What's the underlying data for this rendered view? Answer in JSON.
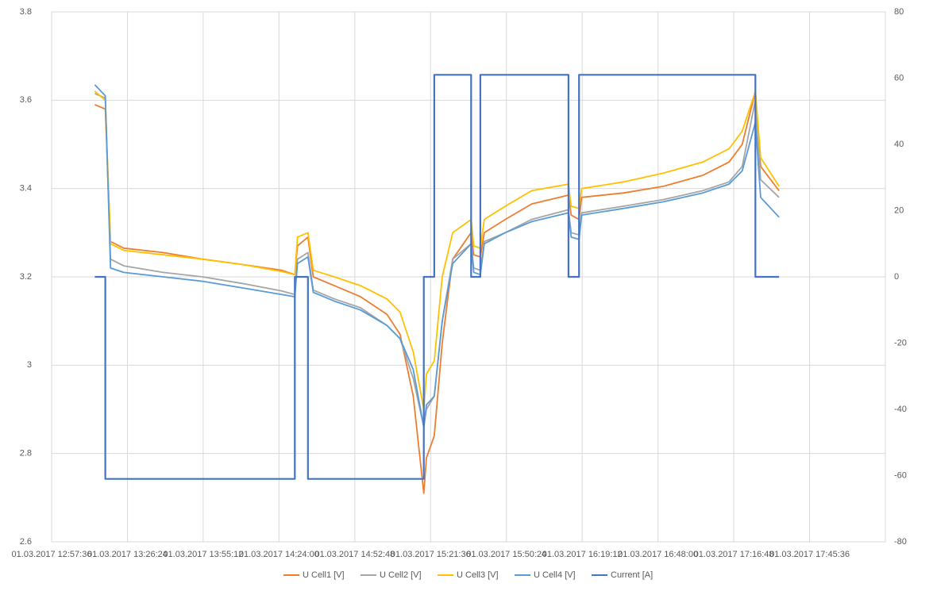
{
  "chart_data": {
    "type": "line",
    "x": [
      "01.03.2017 13:14:00",
      "01.03.2017 13:18:00",
      "01.03.2017 13:18:00",
      "01.03.2017 13:20:00",
      "01.03.2017 13:25:00",
      "01.03.2017 13:40:00",
      "01.03.2017 13:55:00",
      "01.03.2017 14:10:00",
      "01.03.2017 14:25:00",
      "01.03.2017 14:30:00",
      "01.03.2017 14:30:00",
      "01.03.2017 14:31:00",
      "01.03.2017 14:35:00",
      "01.03.2017 14:35:00",
      "01.03.2017 14:37:00",
      "01.03.2017 14:45:00",
      "01.03.2017 14:55:00",
      "01.03.2017 15:05:00",
      "01.03.2017 15:10:00",
      "01.03.2017 15:15:00",
      "01.03.2017 15:19:00",
      "01.03.2017 15:19:00",
      "01.03.2017 15:20:00",
      "01.03.2017 15:23:00",
      "01.03.2017 15:23:00",
      "01.03.2017 15:26:00",
      "01.03.2017 15:30:00",
      "01.03.2017 15:37:00",
      "01.03.2017 15:37:00",
      "01.03.2017 15:38:00",
      "01.03.2017 15:40:30",
      "01.03.2017 15:40:30",
      "01.03.2017 15:42:00",
      "01.03.2017 15:50:00",
      "01.03.2017 16:00:00",
      "01.03.2017 16:14:00",
      "01.03.2017 16:14:00",
      "01.03.2017 16:15:00",
      "01.03.2017 16:18:00",
      "01.03.2017 16:18:00",
      "01.03.2017 16:19:00",
      "01.03.2017 16:35:00",
      "01.03.2017 16:50:00",
      "01.03.2017 17:05:00",
      "01.03.2017 17:15:00",
      "01.03.2017 17:20:00",
      "01.03.2017 17:25:00",
      "01.03.2017 17:25:00",
      "01.03.2017 17:27:00",
      "01.03.2017 17:34:00"
    ],
    "series": [
      {
        "name": "U Cell1 [V]",
        "color": "#ED7D31",
        "values": [
          3.59,
          3.58,
          3.58,
          3.28,
          3.265,
          3.255,
          3.24,
          3.228,
          3.215,
          3.205,
          3.205,
          3.27,
          3.29,
          3.29,
          3.2,
          3.18,
          3.155,
          3.115,
          3.07,
          2.93,
          2.71,
          2.71,
          2.79,
          2.84,
          2.84,
          3.05,
          3.24,
          3.3,
          3.3,
          3.25,
          3.245,
          3.245,
          3.3,
          3.33,
          3.365,
          3.385,
          3.385,
          3.34,
          3.33,
          3.33,
          3.38,
          3.39,
          3.405,
          3.43,
          3.46,
          3.5,
          3.62,
          3.62,
          3.45,
          3.395
        ]
      },
      {
        "name": "U Cell2 [V]",
        "color": "#A5A5A5",
        "values": [
          3.615,
          3.605,
          3.605,
          3.24,
          3.225,
          3.21,
          3.2,
          3.185,
          3.168,
          3.16,
          3.16,
          3.24,
          3.255,
          3.255,
          3.17,
          3.15,
          3.13,
          3.09,
          3.06,
          2.97,
          2.86,
          2.86,
          2.9,
          2.93,
          2.93,
          3.1,
          3.24,
          3.275,
          3.275,
          3.22,
          3.215,
          3.215,
          3.28,
          3.3,
          3.33,
          3.352,
          3.352,
          3.3,
          3.295,
          3.295,
          3.345,
          3.36,
          3.375,
          3.395,
          3.415,
          3.45,
          3.6,
          3.6,
          3.42,
          3.38
        ]
      },
      {
        "name": "U Cell3 [V]",
        "color": "#FFC000",
        "values": [
          3.62,
          3.6,
          3.6,
          3.275,
          3.26,
          3.25,
          3.24,
          3.228,
          3.212,
          3.205,
          3.205,
          3.29,
          3.3,
          3.3,
          3.215,
          3.2,
          3.18,
          3.15,
          3.12,
          3.03,
          2.9,
          2.9,
          2.98,
          3.01,
          3.01,
          3.2,
          3.3,
          3.33,
          3.33,
          3.27,
          3.265,
          3.265,
          3.33,
          3.36,
          3.395,
          3.41,
          3.41,
          3.36,
          3.355,
          3.355,
          3.4,
          3.415,
          3.435,
          3.46,
          3.49,
          3.53,
          3.62,
          3.62,
          3.47,
          3.405
        ]
      },
      {
        "name": "U Cell4 [V]",
        "color": "#5B9BD5",
        "values": [
          3.635,
          3.61,
          3.61,
          3.22,
          3.21,
          3.2,
          3.19,
          3.175,
          3.16,
          3.155,
          3.155,
          3.23,
          3.245,
          3.245,
          3.165,
          3.145,
          3.125,
          3.09,
          3.06,
          2.99,
          2.86,
          2.86,
          2.91,
          2.93,
          2.93,
          3.1,
          3.23,
          3.275,
          3.275,
          3.21,
          3.205,
          3.205,
          3.275,
          3.3,
          3.325,
          3.345,
          3.345,
          3.29,
          3.285,
          3.285,
          3.34,
          3.355,
          3.37,
          3.39,
          3.41,
          3.44,
          3.55,
          3.55,
          3.38,
          3.335
        ]
      },
      {
        "name": "Current [A]",
        "color": "#4472C4",
        "axis": "y2",
        "values": [
          0,
          0,
          -61,
          -61,
          -61,
          -61,
          -61,
          -61,
          -61,
          -61,
          0,
          0,
          0,
          -61,
          -61,
          -61,
          -61,
          -61,
          -61,
          -61,
          -61,
          0,
          0,
          0,
          61,
          61,
          61,
          61,
          0,
          0,
          0,
          61,
          61,
          61,
          61,
          61,
          0,
          0,
          0,
          61,
          61,
          61,
          61,
          61,
          61,
          61,
          61,
          0,
          0,
          0
        ]
      }
    ],
    "xlim": [
      "01.03.2017 12:57:36",
      "01.03.2017 18:14:24"
    ],
    "xticks": [
      "01.03.2017 12:57:36",
      "01.03.2017 13:26:24",
      "01.03.2017 13:55:12",
      "01.03.2017 14:24:00",
      "01.03.2017 14:52:48",
      "01.03.2017 15:21:36",
      "01.03.2017 15:50:24",
      "01.03.2017 16:19:12",
      "01.03.2017 16:48:00",
      "01.03.2017 17:16:48",
      "01.03.2017 17:45:36"
    ],
    "ylim": [
      2.6,
      3.8
    ],
    "yticks": [
      2.6,
      2.8,
      3,
      3.2,
      3.4,
      3.6,
      3.8
    ],
    "y2lim": [
      -80,
      80
    ],
    "y2ticks": [
      -80,
      -60,
      -40,
      -20,
      0,
      20,
      40,
      60,
      80
    ],
    "grid": true,
    "legend": "bottom"
  }
}
